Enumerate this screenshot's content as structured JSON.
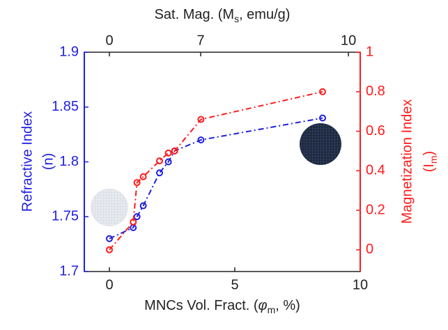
{
  "chart_data": {
    "type": "line",
    "xlabel": [
      "MNCs Vol. Fract. (",
      "φ",
      "m",
      ", %)"
    ],
    "ylabel": [
      "Refractive Index",
      "(n)"
    ],
    "y2label": [
      "Magnetization Index",
      "(I",
      "m",
      ")"
    ],
    "x2label": [
      "Sat. Mag. (M",
      "s",
      ", emu/g)"
    ],
    "xlim": [
      -1,
      10
    ],
    "xticks": [
      0,
      5,
      10
    ],
    "ylim": [
      1.7,
      1.9
    ],
    "yticks": [
      1.7,
      1.75,
      1.8,
      1.85,
      1.9
    ],
    "y2lim": [
      -0.11,
      1
    ],
    "y2ticks": [
      0,
      0.2,
      0.4,
      0.6,
      0.8,
      1
    ],
    "x2ticks": [
      0,
      7,
      10
    ],
    "x2tick_positions": [
      0,
      3.64,
      9.53
    ],
    "series": [
      {
        "name": "Refractive Index",
        "color": "#1f1fe0",
        "axis": "y",
        "x": [
          0,
          0.95,
          1.1,
          1.35,
          2.0,
          2.35,
          2.6,
          3.65,
          8.5
        ],
        "values": [
          1.73,
          1.74,
          1.75,
          1.76,
          1.79,
          1.8,
          1.81,
          1.82,
          1.84
        ]
      },
      {
        "name": "Magnetization Index",
        "color": "#ff1a1a",
        "axis": "y2",
        "x": [
          0,
          0.95,
          1.1,
          1.35,
          2.0,
          2.35,
          2.6,
          3.65,
          8.5
        ],
        "values": [
          0,
          0.14,
          0.34,
          0.37,
          0.45,
          0.49,
          0.5,
          0.66,
          0.8
        ]
      }
    ]
  }
}
